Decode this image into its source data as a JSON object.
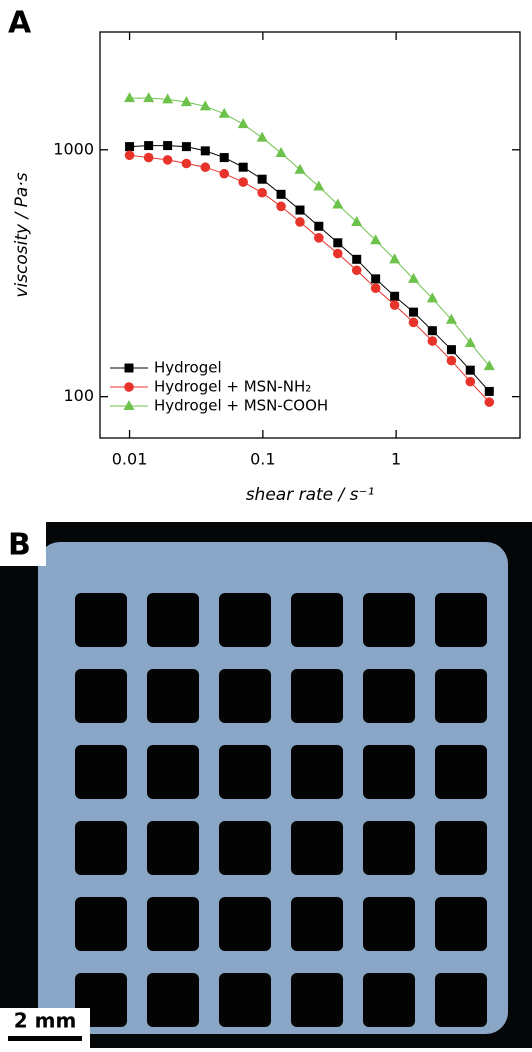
{
  "panels": {
    "a": "A",
    "b": "B"
  },
  "scale_bar": "2 mm",
  "chart_data": {
    "type": "line",
    "x_label": "shear rate / s⁻¹",
    "y_label": "viscosity / Pa·s",
    "x": [
      0.01,
      0.0139,
      0.0193,
      0.0267,
      0.037,
      0.0513,
      0.0712,
      0.0988,
      0.137,
      0.19,
      0.263,
      0.365,
      0.506,
      0.702,
      0.974,
      1.35,
      1.87,
      2.6,
      3.6,
      5
    ],
    "series": [
      {
        "name": "Hydrogel",
        "color": "#000000",
        "marker": "square",
        "values": [
          1030,
          1040,
          1040,
          1030,
          990,
          930,
          850,
          760,
          660,
          570,
          490,
          420,
          360,
          300,
          255,
          220,
          185,
          155,
          128,
          105
        ]
      },
      {
        "name": "Hydrogel + MSN-NH₂",
        "color": "#e8332a",
        "marker": "circle",
        "values": [
          950,
          930,
          910,
          880,
          850,
          800,
          740,
          670,
          590,
          510,
          440,
          380,
          325,
          275,
          235,
          200,
          168,
          140,
          115,
          95
        ]
      },
      {
        "name": "Hydrogel + MSN-COOH",
        "color": "#6cc24a",
        "marker": "triangle",
        "values": [
          1620,
          1620,
          1600,
          1560,
          1500,
          1400,
          1270,
          1120,
          970,
          830,
          710,
          600,
          510,
          430,
          360,
          300,
          250,
          205,
          165,
          133
        ]
      }
    ],
    "xlog": true,
    "ylog": true,
    "xlim": [
      0.006,
      8.5
    ],
    "ylim": [
      68,
      3000
    ],
    "xticks": [
      0.01,
      0.1,
      1
    ],
    "yticks": [
      100,
      1000
    ],
    "legend": "lower-left"
  }
}
